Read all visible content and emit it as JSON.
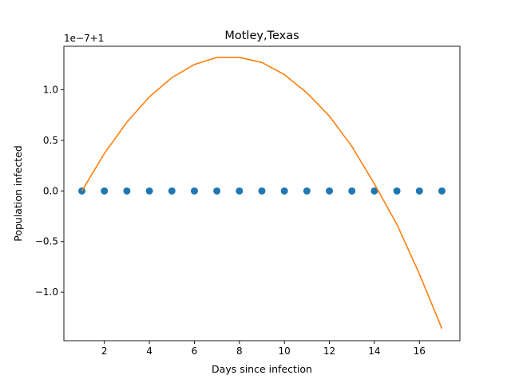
{
  "chart_data": {
    "type": "line",
    "title": "Motley,Texas",
    "xlabel": "Days since infection",
    "ylabel": "Population infected",
    "offset_text": "1e−7+1",
    "xlim": [
      0.2,
      17.8
    ],
    "ylim": [
      -1.48,
      1.43
    ],
    "x_ticks": [
      2,
      4,
      6,
      8,
      10,
      12,
      14,
      16
    ],
    "y_ticks": [
      -1.0,
      -0.5,
      0.0,
      0.5,
      1.0
    ],
    "x_tick_labels": [
      "2",
      "4",
      "6",
      "8",
      "10",
      "12",
      "14",
      "16"
    ],
    "y_tick_labels": [
      "−1.0",
      "−0.5",
      "0.0",
      "0.5",
      "1.0"
    ],
    "grid": false,
    "series": [
      {
        "kind": "scatter",
        "color": "#1f77b4",
        "x": [
          1,
          2,
          3,
          4,
          5,
          6,
          7,
          8,
          9,
          10,
          11,
          12,
          13,
          14,
          15,
          16,
          17
        ],
        "y": [
          0,
          0,
          0,
          0,
          0,
          0,
          0,
          0,
          0,
          0,
          0,
          0,
          0,
          0,
          0,
          0,
          0
        ]
      },
      {
        "kind": "line",
        "color": "#ff7f0e",
        "x": [
          1,
          2,
          3,
          4,
          5,
          6,
          7,
          8,
          9,
          10,
          11,
          12,
          13,
          14,
          15,
          16,
          17
        ],
        "y": [
          0.0,
          0.37,
          0.68,
          0.93,
          1.12,
          1.25,
          1.32,
          1.32,
          1.27,
          1.15,
          0.97,
          0.74,
          0.44,
          0.07,
          -0.33,
          -0.82,
          -1.36
        ]
      }
    ]
  }
}
